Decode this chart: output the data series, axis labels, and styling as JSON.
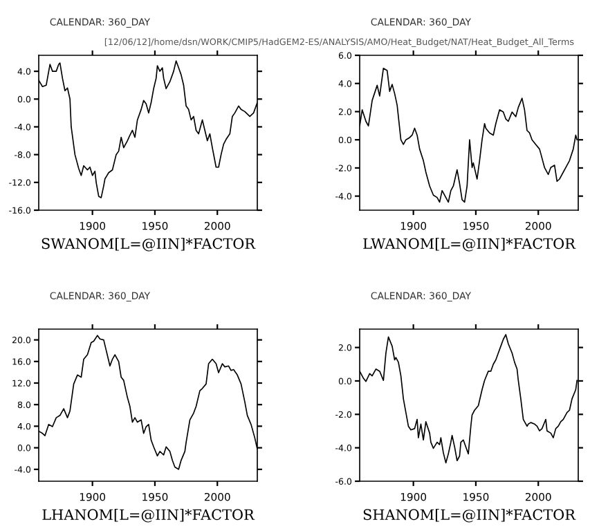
{
  "chart_data": [
    {
      "type": "line",
      "title": "SWANOM[L=@IIN]*FACTOR",
      "subtitle": "CALENDAR: 360_DAY",
      "annotations": [
        "[12/06/12]/home/dsn/WORK/CMIP5/HadGEM2-ES/ANALYSIS/AMO/Heat_Budget/NAT/Heat_Budget_All_Terms"
      ],
      "xlim": [
        1857,
        2032
      ],
      "xticks": [
        1900,
        1950,
        2000
      ],
      "ylim": [
        -16,
        6.3
      ],
      "yticks": [
        {
          "value": -16,
          "label": "-16.0"
        },
        {
          "value": -12,
          "label": "-12.0"
        },
        {
          "value": -8,
          "label": "-8.0"
        },
        {
          "value": -4,
          "label": "-4.0"
        },
        {
          "value": 0,
          "label": "0.0"
        },
        {
          "value": 4,
          "label": "4.0"
        }
      ],
      "grid": false,
      "legend": false,
      "series": [
        {
          "color": "#000000",
          "x": [
            1857,
            1860,
            1863,
            1866,
            1868,
            1871,
            1873,
            1874,
            1876,
            1878,
            1880,
            1882,
            1883,
            1886,
            1889,
            1891,
            1893,
            1896,
            1898,
            1900,
            1902,
            1903,
            1905,
            1907,
            1909,
            1910,
            1913,
            1916,
            1919,
            1921,
            1923,
            1925,
            1928,
            1930,
            1932,
            1934,
            1936,
            1939,
            1941,
            1943,
            1945,
            1947,
            1949,
            1951,
            1952,
            1954,
            1956,
            1957,
            1959,
            1962,
            1965,
            1967,
            1969,
            1971,
            1973,
            1975,
            1977,
            1979,
            1981,
            1983,
            1985,
            1988,
            1990,
            1992,
            1994,
            1996,
            1999,
            2001,
            2003,
            2005,
            2007,
            2010,
            2012,
            2014,
            2017,
            2019,
            2022,
            2026,
            2029,
            2032
          ],
          "values": [
            2.7,
            1.8,
            2.0,
            5.0,
            4.0,
            4.0,
            5.0,
            5.2,
            3.0,
            1.2,
            1.6,
            0.0,
            -4,
            -8,
            -10,
            -11,
            -9.6,
            -10.2,
            -9.8,
            -11,
            -10.4,
            -12,
            -14,
            -14.2,
            -12.5,
            -11.5,
            -10.6,
            -10.2,
            -8,
            -7.5,
            -5.5,
            -7,
            -6,
            -5.2,
            -4.5,
            -5.5,
            -3,
            -1.5,
            -0.2,
            -0.7,
            -2,
            -0.5,
            1.5,
            3,
            4.8,
            4.0,
            4.5,
            3,
            1.5,
            2.5,
            4.0,
            5.5,
            4.5,
            3.5,
            2,
            -1,
            -1.5,
            -3,
            -2.5,
            -4.5,
            -5,
            -3,
            -4.5,
            -6,
            -5,
            -7,
            -9.8,
            -9.8,
            -8,
            -6.5,
            -5.8,
            -5,
            -2.5,
            -2,
            -1,
            -1.5,
            -1.8,
            -2.5,
            -2,
            -0.5
          ]
        }
      ]
    },
    {
      "type": "line",
      "title": "LWANOM[L=@IIN]*FACTOR",
      "subtitle": "CALENDAR: 360_DAY",
      "xlim": [
        1857,
        2032
      ],
      "xticks": [
        1900,
        1950,
        2000
      ],
      "ylim": [
        -5,
        6
      ],
      "yticks": [
        {
          "value": -4,
          "label": "-4.0"
        },
        {
          "value": -2,
          "label": "-2.0"
        },
        {
          "value": 0,
          "label": "0.0"
        },
        {
          "value": 2,
          "label": "2.0"
        },
        {
          "value": 4,
          "label": "4.0"
        },
        {
          "value": 6,
          "label": "6.0"
        }
      ],
      "grid": false,
      "legend": false,
      "series": [
        {
          "color": "#000000",
          "x": [
            1857,
            1859,
            1862,
            1864,
            1867,
            1871,
            1873,
            1876,
            1879,
            1881,
            1883,
            1885,
            1887,
            1890,
            1892,
            1894,
            1897,
            1899,
            1901,
            1903,
            1905,
            1908,
            1910,
            1913,
            1916,
            1919,
            1921,
            1923,
            1926,
            1928,
            1930,
            1932,
            1935,
            1937,
            1939,
            1941,
            1943,
            1945,
            1947,
            1948,
            1951,
            1953,
            1955,
            1957,
            1958,
            1961,
            1964,
            1966,
            1969,
            1972,
            1974,
            1976,
            1979,
            1982,
            1984,
            1987,
            1989,
            1991,
            1993,
            1995,
            1998,
            2001,
            2002,
            2005,
            2008,
            2010,
            2013,
            2015,
            2017,
            2020,
            2022,
            2025,
            2028,
            2030,
            2031
          ],
          "values": [
            0.98,
            2.13,
            1.31,
            0.98,
            2.79,
            3.87,
            3.11,
            5.08,
            4.92,
            3.44,
            3.93,
            3.28,
            2.46,
            0.0,
            -0.33,
            0.0,
            0.16,
            0.33,
            0.82,
            0.33,
            -0.66,
            -1.48,
            -2.3,
            -3.28,
            -3.93,
            -4.1,
            -4.43,
            -3.61,
            -4.1,
            -4.43,
            -3.61,
            -3.28,
            -2.13,
            -3.11,
            -4.26,
            -4.43,
            -3.28,
            0.0,
            -1.97,
            -1.64,
            -2.79,
            -1.48,
            0.0,
            1.15,
            0.82,
            0.49,
            0.33,
            1.15,
            2.13,
            1.97,
            1.48,
            1.31,
            1.97,
            1.64,
            2.3,
            2.95,
            2.13,
            0.66,
            0.49,
            0.0,
            -0.33,
            -0.66,
            -0.98,
            -1.97,
            -2.46,
            -1.97,
            -1.8,
            -2.95,
            -2.79,
            -2.3,
            -1.97,
            -1.48,
            -0.66,
            0.33,
            0.0
          ]
        }
      ]
    },
    {
      "type": "line",
      "title": "LHANOM[L=@IIN]*FACTOR",
      "subtitle": "CALENDAR: 360_DAY",
      "xlim": [
        1857,
        2032
      ],
      "xticks": [
        1900,
        1950,
        2000
      ],
      "ylim": [
        -6.2,
        22
      ],
      "yticks": [
        {
          "value": -4,
          "label": "-4.0"
        },
        {
          "value": 0,
          "label": "0.0"
        },
        {
          "value": 4,
          "label": "4.0"
        },
        {
          "value": 8,
          "label": "8.0"
        },
        {
          "value": 12,
          "label": "12.0"
        },
        {
          "value": 16,
          "label": "16.0"
        },
        {
          "value": 20,
          "label": "20.0"
        }
      ],
      "grid": false,
      "legend": false,
      "series": [
        {
          "color": "#000000",
          "x": [
            1857,
            1860,
            1862,
            1865,
            1868,
            1871,
            1874,
            1877,
            1880,
            1882,
            1885,
            1888,
            1891,
            1893,
            1896,
            1899,
            1901,
            1904,
            1906,
            1909,
            1911,
            1914,
            1916,
            1918,
            1921,
            1923,
            1925,
            1928,
            1930,
            1932,
            1934,
            1936,
            1939,
            1941,
            1943,
            1945,
            1947,
            1949,
            1952,
            1954,
            1957,
            1959,
            1962,
            1964,
            1966,
            1969,
            1971,
            1974,
            1975,
            1978,
            1981,
            1983,
            1986,
            1988,
            1991,
            1993,
            1996,
            1999,
            2001,
            2004,
            2006,
            2009,
            2011,
            2013,
            2016,
            2019,
            2022,
            2024,
            2027,
            2030,
            2032
          ],
          "values": [
            3.08,
            2.67,
            2.25,
            4.33,
            3.92,
            5.58,
            6.0,
            7.25,
            5.58,
            6.83,
            11.83,
            13.5,
            13.08,
            16.42,
            17.25,
            19.5,
            19.75,
            20.83,
            20.17,
            20.0,
            18.08,
            15.17,
            16.42,
            17.25,
            16.0,
            13.08,
            12.5,
            9.33,
            7.67,
            4.75,
            5.58,
            4.75,
            5.17,
            2.67,
            3.92,
            4.33,
            1.42,
            0.17,
            -1.5,
            -0.67,
            -1.33,
            0.17,
            -0.67,
            -2.33,
            -3.58,
            -4.0,
            -2.33,
            -0.67,
            1.0,
            5.17,
            6.42,
            7.67,
            10.58,
            11.0,
            11.83,
            15.58,
            16.42,
            15.58,
            13.92,
            15.58,
            15.0,
            15.17,
            14.33,
            14.5,
            13.5,
            11.83,
            8.5,
            6.0,
            4.33,
            1.83,
            -0.25
          ]
        }
      ]
    },
    {
      "type": "line",
      "title": "SHANOM[L=@IIN]*FACTOR",
      "subtitle": "CALENDAR: 360_DAY",
      "xlim": [
        1857,
        2032
      ],
      "xticks": [
        1900,
        1950,
        2000
      ],
      "ylim": [
        -6,
        3.1
      ],
      "yticks": [
        {
          "value": -6,
          "label": "-6.0"
        },
        {
          "value": -4,
          "label": "-4.0"
        },
        {
          "value": -2,
          "label": "-2.0"
        },
        {
          "value": 0,
          "label": "0.0"
        },
        {
          "value": 2,
          "label": "2.0"
        }
      ],
      "grid": false,
      "legend": false,
      "series": [
        {
          "color": "#000000",
          "x": [
            1857,
            1860,
            1862,
            1865,
            1867,
            1870,
            1873,
            1876,
            1878,
            1880,
            1883,
            1885,
            1886,
            1888,
            1890,
            1892,
            1894,
            1896,
            1898,
            1901,
            1903,
            1904,
            1906,
            1908,
            1910,
            1913,
            1914,
            1916,
            1919,
            1921,
            1922,
            1924,
            1926,
            1928,
            1930,
            1931,
            1933,
            1935,
            1937,
            1938,
            1940,
            1942,
            1944,
            1946,
            1947,
            1949,
            1952,
            1955,
            1957,
            1960,
            1962,
            1964,
            1966,
            1968,
            1970,
            1972,
            1974,
            1976,
            1979,
            1981,
            1983,
            1984,
            1986,
            1988,
            1991,
            1992,
            1994,
            1997,
            1999,
            2001,
            2003,
            2006,
            2007,
            2010,
            2012,
            2014,
            2016,
            2018,
            2020,
            2023,
            2025,
            2027,
            2030,
            2031
          ],
          "values": [
            0.58,
            0.16,
            -0.03,
            0.44,
            0.3,
            0.71,
            0.58,
            0.03,
            1.67,
            2.63,
            2.08,
            1.26,
            1.4,
            1.12,
            0.3,
            -1.07,
            -1.89,
            -2.71,
            -2.93,
            -2.85,
            -2.3,
            -3.4,
            -2.58,
            -3.53,
            -2.44,
            -3.12,
            -3.67,
            -4.03,
            -3.67,
            -3.81,
            -3.4,
            -4.3,
            -4.9,
            -4.36,
            -3.67,
            -3.26,
            -3.95,
            -4.77,
            -4.49,
            -3.67,
            -3.53,
            -3.95,
            -4.36,
            -2.71,
            -2.03,
            -1.75,
            -1.48,
            -0.52,
            0.03,
            0.58,
            0.58,
            1.0,
            1.26,
            1.67,
            2.08,
            2.49,
            2.77,
            2.22,
            1.67,
            1.12,
            0.71,
            0.03,
            -1.07,
            -2.3,
            -2.71,
            -2.58,
            -2.49,
            -2.58,
            -2.71,
            -2.99,
            -2.85,
            -2.3,
            -2.99,
            -3.12,
            -3.4,
            -2.85,
            -2.71,
            -2.44,
            -2.3,
            -1.89,
            -1.75,
            -1.07,
            -0.52,
            0.03
          ]
        }
      ]
    }
  ]
}
